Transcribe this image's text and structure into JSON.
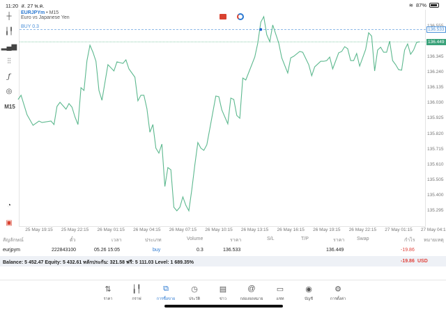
{
  "status": {
    "time": "11:20",
    "date": "ส. 27 พ.ค.",
    "battery": "87%"
  },
  "chart": {
    "symbol": "EURJPYm",
    "timeframe": "M15",
    "description": "Euro vs Japanese Yen",
    "order_label": "BUY 0.3",
    "timeframe_button": "M15",
    "line_color": "#5cb88e",
    "buy_line_color": "#4a90d9"
  },
  "chart_data": {
    "type": "line",
    "title": "EURJPYm • M15",
    "y_ticks": [
      "136.555",
      "136.345",
      "136.240",
      "136.135",
      "136.030",
      "135.925",
      "135.820",
      "135.715",
      "135.610",
      "135.505",
      "135.400",
      "135.295"
    ],
    "x_ticks": [
      "25 May 19:15",
      "25 May 22:15",
      "26 May 01:15",
      "26 May 04:15",
      "26 May 07:15",
      "26 May 10:15",
      "26 May 13:15",
      "26 May 16:15",
      "26 May 19:15",
      "26 May 22:15",
      "27 May 01:15",
      "27 May 04:15"
    ],
    "ylim": [
      135.25,
      136.66
    ],
    "buy_price": "136.533",
    "current_price": "136.449",
    "series": [
      {
        "points": [
          [
            "25 May 17:30",
            136.055
          ],
          [
            "25 May 17:45",
            136.084
          ],
          [
            "25 May 18:15",
            135.951
          ],
          [
            "25 May 18:45",
            135.879
          ],
          [
            "25 May 19:15",
            135.908
          ],
          [
            "25 May 19:30",
            135.898
          ],
          [
            "25 May 20:15",
            135.908
          ],
          [
            "25 May 20:30",
            135.884
          ],
          [
            "25 May 20:45",
            136.008
          ],
          [
            "25 May 21:00",
            136.036
          ],
          [
            "25 May 21:30",
            135.989
          ],
          [
            "25 May 21:45",
            136.027
          ],
          [
            "25 May 22:00",
            136.003
          ],
          [
            "25 May 22:15",
            135.936
          ],
          [
            "25 May 22:30",
            135.884
          ],
          [
            "25 May 22:45",
            136.136
          ],
          [
            "25 May 23:00",
            136.117
          ],
          [
            "25 May 23:15",
            136.321
          ],
          [
            "25 May 23:30",
            136.426
          ],
          [
            "25 May 23:45",
            136.378
          ],
          [
            "26 May 00:00",
            136.316
          ],
          [
            "26 May 00:15",
            136.117
          ],
          [
            "26 May 00:30",
            136.05
          ],
          [
            "26 May 01:00",
            136.293
          ],
          [
            "26 May 01:30",
            136.25
          ],
          [
            "26 May 01:45",
            136.312
          ],
          [
            "26 May 02:15",
            136.302
          ],
          [
            "26 May 02:30",
            136.326
          ],
          [
            "26 May 02:45",
            136.264
          ],
          [
            "26 May 03:15",
            136.207
          ],
          [
            "26 May 03:30",
            136.046
          ],
          [
            "26 May 03:45",
            136.084
          ],
          [
            "26 May 04:00",
            136.084
          ],
          [
            "26 May 04:15",
            135.993
          ],
          [
            "26 May 04:30",
            135.832
          ],
          [
            "26 May 04:45",
            135.884
          ],
          [
            "26 May 05:00",
            135.723
          ],
          [
            "26 May 05:15",
            135.689
          ],
          [
            "26 May 05:30",
            135.751
          ],
          [
            "26 May 05:45",
            135.461
          ],
          [
            "26 May 06:00",
            135.59
          ],
          [
            "26 May 06:15",
            135.575
          ],
          [
            "26 May 06:30",
            135.319
          ],
          [
            "26 May 06:45",
            135.295
          ],
          [
            "26 May 07:00",
            135.319
          ],
          [
            "26 May 07:15",
            135.39
          ],
          [
            "26 May 07:30",
            135.333
          ],
          [
            "26 May 07:45",
            135.295
          ],
          [
            "26 May 08:00",
            135.442
          ],
          [
            "26 May 08:15",
            135.609
          ],
          [
            "26 May 08:30",
            135.761
          ],
          [
            "26 May 08:45",
            135.723
          ],
          [
            "26 May 09:00",
            135.708
          ],
          [
            "26 May 09:15",
            135.746
          ],
          [
            "26 May 09:30",
            135.856
          ],
          [
            "26 May 10:00",
            136.079
          ],
          [
            "26 May 10:15",
            136.074
          ],
          [
            "26 May 10:30",
            135.984
          ],
          [
            "26 May 11:00",
            135.889
          ],
          [
            "26 May 11:15",
            136.065
          ],
          [
            "26 May 11:30",
            136.055
          ],
          [
            "26 May 11:45",
            135.946
          ],
          [
            "26 May 12:00",
            135.927
          ],
          [
            "26 May 12:15",
            136.202
          ],
          [
            "26 May 12:30",
            136.188
          ],
          [
            "26 May 13:15",
            136.345
          ],
          [
            "26 May 13:30",
            136.44
          ],
          [
            "26 May 13:45",
            136.583
          ],
          [
            "26 May 14:00",
            136.621
          ],
          [
            "26 May 14:15",
            136.497
          ],
          [
            "26 May 14:30",
            136.45
          ],
          [
            "26 May 14:45",
            136.564
          ],
          [
            "26 May 15:15",
            136.44
          ],
          [
            "26 May 15:30",
            136.34
          ],
          [
            "26 May 16:00",
            136.236
          ],
          [
            "26 May 16:15",
            136.34
          ],
          [
            "26 May 16:30",
            136.35
          ],
          [
            "26 May 17:00",
            136.383
          ],
          [
            "26 May 17:15",
            136.378
          ],
          [
            "26 May 17:45",
            136.293
          ],
          [
            "26 May 18:00",
            136.217
          ],
          [
            "26 May 18:15",
            136.278
          ],
          [
            "26 May 18:45",
            136.316
          ],
          [
            "26 May 19:00",
            136.316
          ],
          [
            "26 May 19:15",
            136.321
          ],
          [
            "26 May 19:30",
            136.345
          ],
          [
            "26 May 19:45",
            136.264
          ],
          [
            "26 May 20:15",
            136.374
          ],
          [
            "26 May 20:30",
            136.383
          ],
          [
            "26 May 20:45",
            136.416
          ],
          [
            "26 May 21:00",
            136.402
          ],
          [
            "26 May 21:15",
            136.321
          ],
          [
            "26 May 21:30",
            136.321
          ],
          [
            "26 May 21:45",
            136.369
          ],
          [
            "26 May 22:00",
            136.283
          ],
          [
            "26 May 22:30",
            136.397
          ],
          [
            "26 May 22:45",
            136.511
          ],
          [
            "26 May 23:00",
            136.488
          ],
          [
            "26 May 23:15",
            136.25
          ],
          [
            "26 May 23:30",
            136.393
          ],
          [
            "26 May 23:45",
            136.412
          ],
          [
            "27 May 00:00",
            136.378
          ],
          [
            "27 May 00:15",
            136.378
          ],
          [
            "27 May 00:30",
            136.454
          ],
          [
            "27 May 00:45",
            136.321
          ],
          [
            "27 May 01:00",
            136.293
          ],
          [
            "27 May 01:15",
            136.259
          ],
          [
            "27 May 01:30",
            136.255
          ],
          [
            "27 May 01:45",
            136.393
          ],
          [
            "27 May 02:00",
            136.435
          ],
          [
            "27 May 02:15",
            136.364
          ],
          [
            "27 May 02:30",
            136.393
          ],
          [
            "27 May 02:45",
            136.445
          ],
          [
            "27 May 03:00",
            136.449
          ]
        ]
      }
    ],
    "entry_marker": [
      "26 May 13:45",
      136.533
    ]
  },
  "table": {
    "headers": [
      "สัญลักษณ์",
      "ตั๋ว",
      "เวลา",
      "ประเภท",
      "Volume",
      "ราคา",
      "S/L",
      "T/P",
      "ราคา",
      "Swap",
      "กำไร",
      "หมายเหตุ"
    ],
    "row": {
      "symbol": "eurjpym",
      "ticket": "222843100",
      "time": "05.26 15:05",
      "type": "buy",
      "volume": "0.3",
      "open_price": "136.533",
      "current_price": "136.449",
      "profit": "-19.86"
    },
    "balance": "Balance: 5 452.47 Equity: 5 432.61 หลักประกัน: 321.58 ฟรี: 5 111.03 Level: 1 689.35%",
    "total_profit": "-19.86",
    "currency": "USD"
  },
  "nav": [
    {
      "label": "ราคา",
      "icon": "quotes-icon"
    },
    {
      "label": "กราฟ",
      "icon": "chart-icon"
    },
    {
      "label": "การซื้อขาย",
      "icon": "trade-icon",
      "active": true
    },
    {
      "label": "ประวัติ",
      "icon": "history-icon"
    },
    {
      "label": "ข่าว",
      "icon": "news-icon"
    },
    {
      "label": "กล่องจดหมาย",
      "icon": "mailbox-icon"
    },
    {
      "label": "แชท",
      "icon": "chat-icon"
    },
    {
      "label": "บัญชี",
      "icon": "account-icon"
    },
    {
      "label": "การตั้งค่า",
      "icon": "settings-icon"
    }
  ],
  "colors": {
    "accent": "#2a78d1",
    "loss": "#e0413a",
    "line": "#5cb88e"
  }
}
